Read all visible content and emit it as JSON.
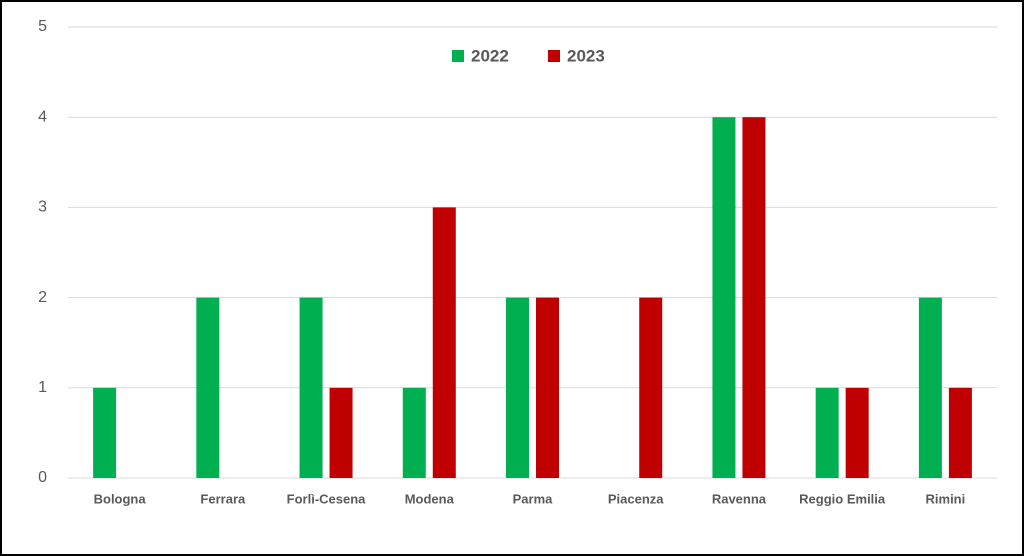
{
  "chart_data": {
    "type": "bar",
    "categories": [
      "Bologna",
      "Ferrara",
      "Forlì-Cesena",
      "Modena",
      "Parma",
      "Piacenza",
      "Ravenna",
      "Reggio Emilia",
      "Rimini"
    ],
    "series": [
      {
        "name": "2022",
        "color": "#00b050",
        "values": [
          1,
          2,
          2,
          1,
          2,
          0,
          4,
          1,
          2
        ]
      },
      {
        "name": "2023",
        "color": "#c00000",
        "values": [
          0,
          0,
          1,
          3,
          2,
          2,
          4,
          1,
          1
        ]
      }
    ],
    "ylim": [
      0,
      5
    ],
    "yticks": [
      0,
      1,
      2,
      3,
      4,
      5
    ],
    "grid": true,
    "legend": "top"
  }
}
